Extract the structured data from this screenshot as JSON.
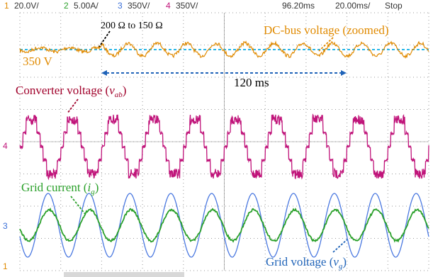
{
  "header": {
    "channels": [
      {
        "num": "1",
        "scale": "20.0V/"
      },
      {
        "num": "2",
        "scale": "5.00A/"
      },
      {
        "num": "3",
        "scale": "350V/"
      },
      {
        "num": "4",
        "scale": "350V/"
      }
    ],
    "time_position": "96.20ms",
    "time_scale": "20.00ms/",
    "status": "Stop"
  },
  "markers": {
    "ch4": "4",
    "ch3": "3",
    "ch1": "1"
  },
  "annotations": {
    "load_step": "200 Ω to 150 Ω",
    "dc_bus": "DC-bus voltage (zoomed)",
    "dc_level": "350 V",
    "period": "120 ms",
    "converter": {
      "text": "Converter voltage (",
      "var": "v",
      "sub": "ab",
      "close": ")"
    },
    "current": {
      "text": "Grid current (",
      "var": "i",
      "sub": "g",
      "close": ")"
    },
    "voltage": {
      "text": "Grid voltage (",
      "var": "v",
      "sub": "g",
      "close": ")"
    }
  }
}
